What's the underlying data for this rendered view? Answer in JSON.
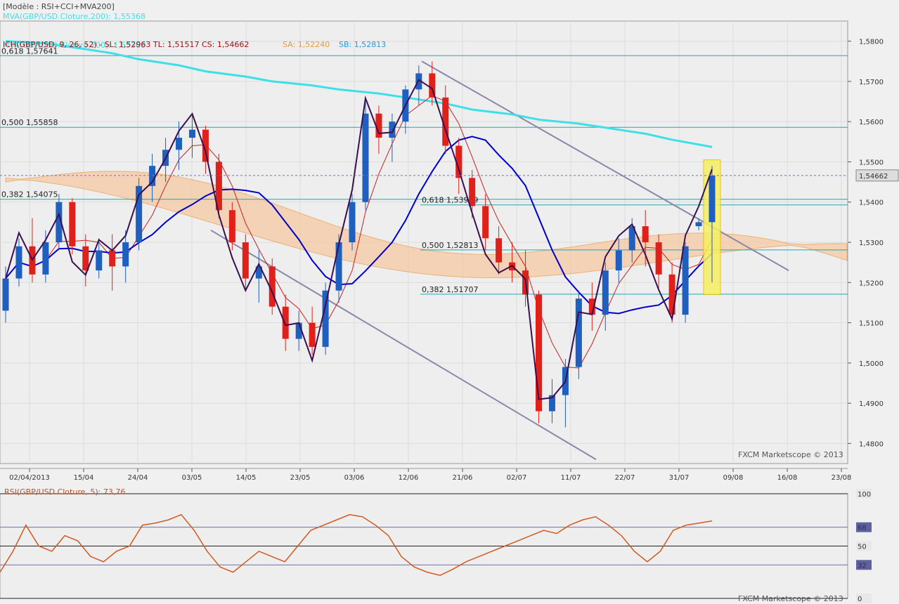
{
  "chart_data": [
    {
      "type": "candlestick",
      "model_label": "[Modèle : RSI+CCI+MVA200]",
      "legend": {
        "mva_top": "MVA(GBP/USD.Cloture,200): 1,55368",
        "ichimoku": "ICH(GBP/USD, 9, 26, 52) -  SL: 1,52963  TL: 1,51517  CS: 1,54662",
        "sa": "SA: 1,52240",
        "sb": "SB: 1,52813",
        "mva_second": "MVA(GBP/USD.Cloture,200): 1,55368"
      },
      "colors": {
        "up": "#1f5fbf",
        "down": "#e0201a",
        "mva": "#3ee0e8",
        "kijun": "#0000cc",
        "tenkan": "#cc2020",
        "chikou": "#3a1050",
        "cloud_bull": "#a9d4ec",
        "cloud_bear": "#f5c9a3",
        "fib": "#20a8b0",
        "trend": "#8888aa",
        "highlight": "#f7f060"
      },
      "y_axis": {
        "min": 1.475,
        "max": 1.585,
        "ticks": [
          "1,4800",
          "1,4900",
          "1,5000",
          "1,5100",
          "1,5200",
          "1,5300",
          "1,5400",
          "1,5500",
          "1,5600",
          "1,5700",
          "1,5800"
        ]
      },
      "current_price": "1,54662",
      "x_labels": [
        "02/04/2013",
        "15/04",
        "24/04",
        "03/05",
        "14/05",
        "23/05",
        "03/06",
        "12/06",
        "21/06",
        "02/07",
        "11/07",
        "22/07",
        "31/07",
        "09/08",
        "16/08",
        "23/08"
      ],
      "fib_labels": [
        {
          "text": "0,618 1,57641",
          "y": 1.5764
        },
        {
          "text": "0,500 1,55858",
          "y": 1.5586
        },
        {
          "text": "0,382 1,54075",
          "y": 1.5407
        },
        {
          "text": "0,618 1,53929",
          "y": 1.5393
        },
        {
          "text": "0,500 1,52813",
          "y": 1.5281
        },
        {
          "text": "0,382 1,51707",
          "y": 1.5171
        }
      ],
      "candles": [
        [
          1.513,
          1.524,
          1.51,
          1.521
        ],
        [
          1.521,
          1.531,
          1.519,
          1.529
        ],
        [
          1.529,
          1.536,
          1.52,
          1.522
        ],
        [
          1.522,
          1.533,
          1.52,
          1.53
        ],
        [
          1.53,
          1.542,
          1.528,
          1.54
        ],
        [
          1.54,
          1.541,
          1.527,
          1.529
        ],
        [
          1.529,
          1.532,
          1.519,
          1.523
        ],
        [
          1.523,
          1.531,
          1.521,
          1.528
        ],
        [
          1.528,
          1.532,
          1.518,
          1.524
        ],
        [
          1.524,
          1.533,
          1.52,
          1.53
        ],
        [
          1.53,
          1.546,
          1.528,
          1.544
        ],
        [
          1.544,
          1.552,
          1.54,
          1.549
        ],
        [
          1.549,
          1.556,
          1.545,
          1.553
        ],
        [
          1.553,
          1.56,
          1.548,
          1.556
        ],
        [
          1.556,
          1.562,
          1.551,
          1.558
        ],
        [
          1.558,
          1.559,
          1.547,
          1.55
        ],
        [
          1.55,
          1.552,
          1.536,
          1.538
        ],
        [
          1.538,
          1.54,
          1.528,
          1.53
        ],
        [
          1.53,
          1.532,
          1.518,
          1.521
        ],
        [
          1.521,
          1.528,
          1.515,
          1.524
        ],
        [
          1.524,
          1.526,
          1.512,
          1.514
        ],
        [
          1.514,
          1.517,
          1.503,
          1.506
        ],
        [
          1.506,
          1.513,
          1.503,
          1.51
        ],
        [
          1.51,
          1.514,
          1.502,
          1.504
        ],
        [
          1.504,
          1.52,
          1.502,
          1.518
        ],
        [
          1.518,
          1.532,
          1.515,
          1.53
        ],
        [
          1.53,
          1.542,
          1.528,
          1.54
        ],
        [
          1.54,
          1.566,
          1.538,
          1.562
        ],
        [
          1.562,
          1.564,
          1.552,
          1.556
        ],
        [
          1.556,
          1.562,
          1.55,
          1.56
        ],
        [
          1.56,
          1.569,
          1.557,
          1.568
        ],
        [
          1.568,
          1.574,
          1.564,
          1.572
        ],
        [
          1.572,
          1.575,
          1.564,
          1.566
        ],
        [
          1.566,
          1.569,
          1.552,
          1.554
        ],
        [
          1.554,
          1.556,
          1.542,
          1.546
        ],
        [
          1.546,
          1.548,
          1.536,
          1.539
        ],
        [
          1.539,
          1.542,
          1.528,
          1.531
        ],
        [
          1.531,
          1.534,
          1.522,
          1.525
        ],
        [
          1.525,
          1.53,
          1.52,
          1.523
        ],
        [
          1.523,
          1.528,
          1.514,
          1.517
        ],
        [
          1.517,
          1.518,
          1.485,
          1.488
        ],
        [
          1.488,
          1.496,
          1.485,
          1.492
        ],
        [
          1.492,
          1.501,
          1.484,
          1.499
        ],
        [
          1.499,
          1.518,
          1.496,
          1.516
        ],
        [
          1.516,
          1.52,
          1.508,
          1.512
        ],
        [
          1.512,
          1.525,
          1.508,
          1.523
        ],
        [
          1.523,
          1.531,
          1.52,
          1.528
        ],
        [
          1.528,
          1.536,
          1.525,
          1.534
        ],
        [
          1.534,
          1.538,
          1.524,
          1.53
        ],
        [
          1.53,
          1.532,
          1.518,
          1.522
        ],
        [
          1.522,
          1.525,
          1.51,
          1.512
        ],
        [
          1.512,
          1.53,
          1.51,
          1.529
        ],
        [
          1.534,
          1.536,
          1.533,
          1.535
        ],
        [
          1.535,
          1.549,
          1.52,
          1.5466
        ]
      ],
      "mva": [
        1.58,
        1.5795,
        1.5785,
        1.577,
        1.5755,
        1.574,
        1.5725,
        1.5712,
        1.57,
        1.569,
        1.568,
        1.567,
        1.566,
        1.5645,
        1.563,
        1.5618,
        1.5605,
        1.5595,
        1.5585,
        1.557,
        1.5555,
        1.5537
      ],
      "rsi": {
        "label": "RSI(GBP/USD.Cloture, 5): 73,76",
        "ticks": [
          "100",
          "68",
          "50",
          "32",
          "0"
        ],
        "levels": [
          100,
          68,
          50,
          32,
          0
        ],
        "values": [
          25,
          45,
          70,
          50,
          45,
          60,
          55,
          40,
          35,
          45,
          50,
          70,
          72,
          75,
          80,
          65,
          45,
          30,
          25,
          35,
          45,
          40,
          35,
          50,
          65,
          70,
          75,
          80,
          78,
          70,
          60,
          40,
          30,
          25,
          22,
          28,
          35,
          40,
          45,
          50,
          55,
          60,
          65,
          62,
          70,
          75,
          78,
          70,
          60,
          45,
          35,
          45,
          65,
          70,
          72,
          74
        ]
      },
      "watermark": "FXCM Marketscope © 2013"
    }
  ]
}
